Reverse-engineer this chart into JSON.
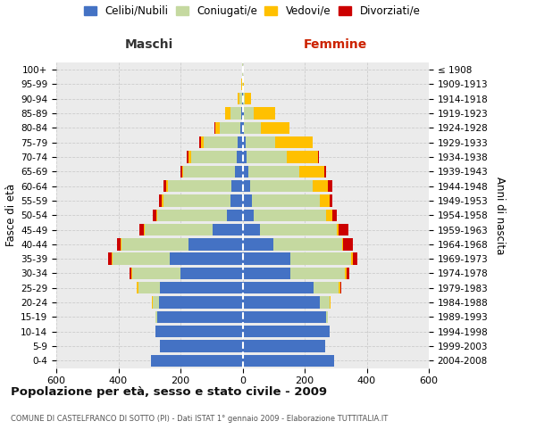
{
  "age_groups": [
    "0-4",
    "5-9",
    "10-14",
    "15-19",
    "20-24",
    "25-29",
    "30-34",
    "35-39",
    "40-44",
    "45-49",
    "50-54",
    "55-59",
    "60-64",
    "65-69",
    "70-74",
    "75-79",
    "80-84",
    "85-89",
    "90-94",
    "95-99",
    "100+"
  ],
  "birth_years": [
    "2004-2008",
    "1999-2003",
    "1994-1998",
    "1989-1993",
    "1984-1988",
    "1979-1983",
    "1974-1978",
    "1969-1973",
    "1964-1968",
    "1959-1963",
    "1954-1958",
    "1949-1953",
    "1944-1948",
    "1939-1943",
    "1934-1938",
    "1929-1933",
    "1924-1928",
    "1919-1923",
    "1914-1918",
    "1909-1913",
    "≤ 1908"
  ],
  "maschi": {
    "celibi": [
      295,
      265,
      280,
      275,
      270,
      265,
      200,
      235,
      175,
      95,
      50,
      40,
      35,
      25,
      20,
      15,
      8,
      5,
      2,
      0,
      0
    ],
    "coniugati": [
      0,
      0,
      1,
      5,
      20,
      70,
      155,
      185,
      215,
      220,
      225,
      215,
      205,
      165,
      145,
      110,
      65,
      35,
      8,
      2,
      1
    ],
    "vedovi": [
      0,
      0,
      0,
      0,
      2,
      5,
      2,
      2,
      2,
      2,
      3,
      5,
      5,
      5,
      10,
      10,
      15,
      15,
      5,
      2,
      0
    ],
    "divorziati": [
      0,
      0,
      0,
      0,
      1,
      2,
      8,
      10,
      12,
      15,
      10,
      10,
      10,
      5,
      5,
      4,
      2,
      0,
      0,
      0,
      0
    ]
  },
  "femmine": {
    "nubili": [
      295,
      265,
      280,
      270,
      250,
      230,
      155,
      155,
      100,
      55,
      35,
      30,
      25,
      18,
      12,
      10,
      5,
      5,
      2,
      0,
      0
    ],
    "coniugate": [
      0,
      0,
      1,
      5,
      30,
      80,
      175,
      195,
      220,
      250,
      235,
      220,
      200,
      165,
      130,
      95,
      55,
      30,
      5,
      2,
      1
    ],
    "vedove": [
      0,
      0,
      0,
      0,
      3,
      5,
      5,
      5,
      5,
      5,
      20,
      30,
      50,
      80,
      100,
      120,
      90,
      70,
      20,
      3,
      0
    ],
    "divorziate": [
      0,
      0,
      0,
      0,
      1,
      2,
      10,
      15,
      30,
      30,
      15,
      10,
      15,
      5,
      3,
      2,
      2,
      0,
      0,
      0,
      0
    ]
  },
  "colors": {
    "celibi": "#4472c4",
    "coniugati": "#c5d9a0",
    "vedovi": "#ffc000",
    "divorziati": "#cc0000"
  },
  "xlim": 600,
  "title": "Popolazione per età, sesso e stato civile - 2009",
  "subtitle": "COMUNE DI CASTELFRANCO DI SOTTO (PI) - Dati ISTAT 1° gennaio 2009 - Elaborazione TUTTITALIA.IT",
  "ylabel_left": "Fasce di età",
  "ylabel_right": "Anni di nascita",
  "label_maschi": "Maschi",
  "label_femmine": "Femmine"
}
